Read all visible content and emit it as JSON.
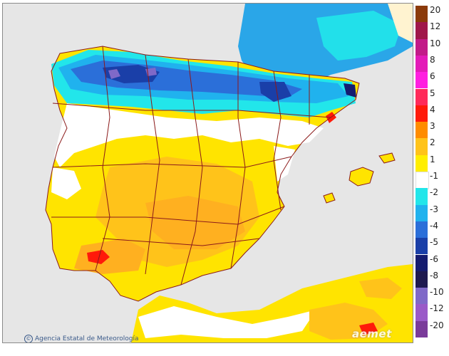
{
  "map": {
    "credit": "Agencia Estatal de Meteorología",
    "brand": "aemet"
  },
  "legend": {
    "items": [
      {
        "label": "20",
        "color": "#8b3a0a"
      },
      {
        "label": "12",
        "color": "#a0174a"
      },
      {
        "label": "10",
        "color": "#c21a88"
      },
      {
        "label": "8",
        "color": "#e31ab8"
      },
      {
        "label": "6",
        "color": "#ff1ee0"
      },
      {
        "label": "5",
        "color": "#ff2a5a"
      },
      {
        "label": "4",
        "color": "#ff1a0a"
      },
      {
        "label": "3",
        "color": "#ff8c00"
      },
      {
        "label": "2",
        "color": "#ffc31a"
      },
      {
        "label": "1",
        "color": "#ffee00"
      },
      {
        "label": "-1",
        "color": "#ffffff"
      },
      {
        "label": "-2",
        "color": "#22e6ea"
      },
      {
        "label": "-3",
        "color": "#20b2ee"
      },
      {
        "label": "-4",
        "color": "#2b6fd9"
      },
      {
        "label": "-5",
        "color": "#1a3fa8"
      },
      {
        "label": "-6",
        "color": "#151c70"
      },
      {
        "label": "-8",
        "color": "#1e1a50"
      },
      {
        "label": "-10",
        "color": "#7f69c8"
      },
      {
        "label": "-12",
        "color": "#9a5ac8"
      },
      {
        "label": "-20",
        "color": "#7a3b9a"
      }
    ]
  },
  "colors": {
    "sea": "#e8e8e8",
    "border": "#8b1a1a"
  }
}
